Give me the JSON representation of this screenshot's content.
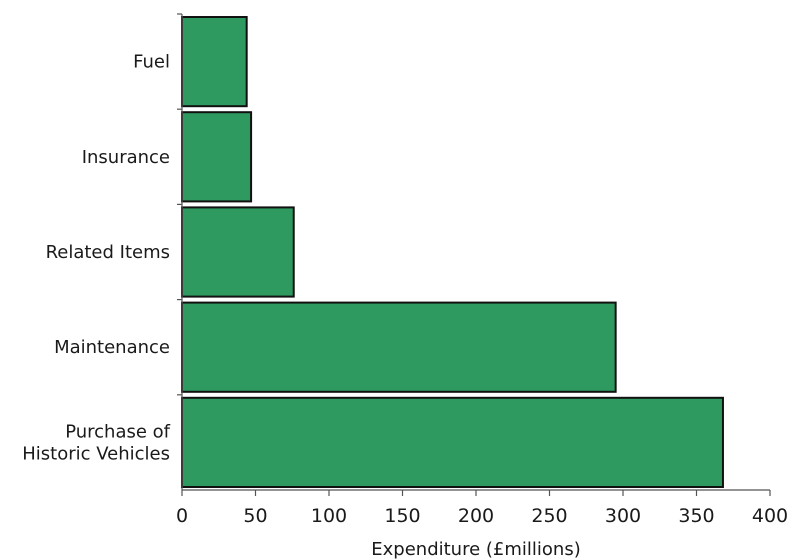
{
  "chart_data": {
    "type": "bar",
    "orientation": "horizontal",
    "categories": [
      "Fuel",
      "Insurance",
      "Related Items",
      "Maintenance",
      "Purchase of Historic Vehicles"
    ],
    "category_display": [
      [
        "Fuel"
      ],
      [
        "Insurance"
      ],
      [
        "Related Items"
      ],
      [
        "Maintenance"
      ],
      [
        "Purchase of",
        "Historic Vehicles"
      ]
    ],
    "values": [
      44,
      47,
      76,
      295,
      368
    ],
    "xlabel": "Expenditure (£millions)",
    "ylabel": "",
    "xlim": [
      0,
      400
    ],
    "xticks": [
      0,
      50,
      100,
      150,
      200,
      250,
      300,
      350,
      400
    ],
    "grid": false,
    "bar_color": "#2e9a5f",
    "bar_edge_color": "#111111"
  }
}
